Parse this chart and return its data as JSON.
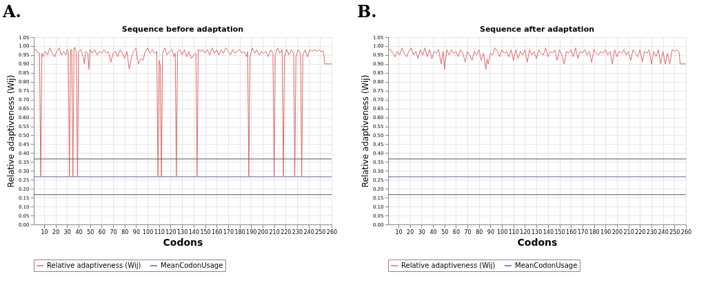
{
  "chart_data": [
    {
      "type": "line",
      "title": "Sequence before adaptation",
      "annotations": [
        "A."
      ],
      "xlabel": "Codons",
      "ylabel": "Relative adaptiveness (Wij)",
      "xlim": [
        1,
        260
      ],
      "xticks": [
        10,
        20,
        30,
        40,
        50,
        60,
        70,
        80,
        90,
        100,
        110,
        120,
        130,
        140,
        150,
        160,
        170,
        180,
        190,
        200,
        210,
        220,
        230,
        240,
        250,
        260
      ],
      "ylim": [
        0,
        1.05
      ],
      "yticks": [
        {
          "value": 0,
          "label": "0.00"
        },
        {
          "value": 0.05,
          "label": "0.05"
        },
        {
          "value": 0.1,
          "label": "0.10"
        },
        {
          "value": 0.15,
          "label": "0.15"
        },
        {
          "value": 0.2,
          "label": "0.20"
        },
        {
          "value": 0.25,
          "label": "0.25"
        },
        {
          "value": 0.3,
          "label": "0.30"
        },
        {
          "value": 0.35,
          "label": "0.35"
        },
        {
          "value": 0.4,
          "label": "0.40"
        },
        {
          "value": 0.45,
          "label": "0.45"
        },
        {
          "value": 0.5,
          "label": "0.50"
        },
        {
          "value": 0.55,
          "label": "0.55"
        },
        {
          "value": 0.6,
          "label": "0.60"
        },
        {
          "value": 0.65,
          "label": "0.65"
        },
        {
          "value": 0.7,
          "label": "0.70"
        },
        {
          "value": 0.75,
          "label": "0.75"
        },
        {
          "value": 0.8,
          "label": "0.80"
        },
        {
          "value": 0.85,
          "label": "0.85"
        },
        {
          "value": 0.9,
          "label": "0.90"
        },
        {
          "value": 0.95,
          "label": "0.95"
        },
        {
          "value": 1,
          "label": "1.00"
        },
        {
          "value": 1.05,
          "label": "1.05"
        }
      ],
      "grid": true,
      "legend": "bottom",
      "line_style": "solid",
      "series": [
        {
          "name": "Relative adaptiveness (Wij)",
          "color": "#e06666",
          "x": [
            1,
            3,
            5,
            6,
            7,
            8,
            9,
            11,
            13,
            15,
            17,
            19,
            21,
            23,
            25,
            27,
            29,
            30,
            31,
            32,
            33,
            34,
            35,
            36,
            37,
            38,
            39,
            40,
            42,
            44,
            45,
            46,
            48,
            49,
            50,
            52,
            54,
            56,
            58,
            60,
            62,
            64,
            66,
            68,
            70,
            72,
            74,
            76,
            78,
            80,
            82,
            84,
            86,
            88,
            90,
            91,
            92,
            94,
            96,
            98,
            100,
            102,
            104,
            106,
            107,
            108,
            109,
            110,
            111,
            112,
            113,
            115,
            117,
            119,
            121,
            123,
            124,
            125,
            126,
            128,
            130,
            132,
            134,
            136,
            138,
            140,
            142,
            143,
            144,
            146,
            148,
            150,
            152,
            154,
            156,
            158,
            160,
            162,
            164,
            166,
            168,
            170,
            172,
            174,
            176,
            178,
            180,
            182,
            184,
            186,
            187,
            188,
            189,
            191,
            193,
            195,
            197,
            199,
            201,
            203,
            205,
            207,
            209,
            210,
            211,
            213,
            215,
            217,
            218,
            219,
            221,
            223,
            225,
            227,
            228,
            229,
            231,
            233,
            234,
            235,
            237,
            239,
            241,
            243,
            245,
            247,
            249,
            251,
            253,
            254,
            260
          ],
          "values": [
            0.98,
            0.98,
            0.96,
            0.96,
            0.27,
            0.96,
            0.94,
            0.97,
            0.95,
            0.99,
            0.96,
            0.94,
            0.97,
            0.99,
            0.95,
            0.97,
            0.95,
            0.98,
            0.97,
            0.27,
            0.98,
            0.98,
            0.27,
            0.99,
            0.99,
            0.96,
            0.27,
            0.97,
            0.98,
            0.94,
            0.9,
            0.97,
            0.96,
            0.87,
            0.98,
            0.96,
            0.98,
            0.95,
            0.97,
            0.96,
            0.98,
            0.96,
            0.97,
            0.91,
            0.96,
            0.97,
            0.94,
            0.98,
            0.96,
            0.93,
            0.97,
            0.87,
            0.94,
            0.97,
            0.99,
            0.93,
            0.9,
            0.93,
            0.92,
            0.97,
            0.99,
            0.96,
            0.98,
            0.96,
            0.96,
            0.97,
            0.27,
            0.92,
            0.89,
            0.27,
            0.96,
            0.99,
            0.95,
            0.97,
            0.98,
            0.94,
            0.96,
            0.27,
            0.97,
            0.98,
            0.95,
            0.98,
            0.94,
            0.97,
            0.93,
            0.95,
            0.96,
            0.27,
            0.98,
            0.97,
            0.98,
            0.96,
            0.98,
            0.95,
            0.99,
            0.96,
            0.98,
            0.95,
            0.98,
            0.96,
            0.99,
            0.97,
            0.95,
            0.98,
            0.96,
            0.97,
            0.98,
            0.96,
            0.97,
            0.94,
            0.97,
            0.27,
            0.94,
            0.99,
            0.96,
            0.98,
            0.95,
            0.97,
            0.96,
            0.97,
            0.94,
            0.98,
            0.96,
            0.27,
            0.95,
            0.99,
            0.96,
            0.98,
            0.27,
            0.94,
            0.98,
            0.95,
            0.98,
            0.96,
            0.27,
            0.94,
            0.98,
            0.96,
            0.27,
            0.95,
            0.98,
            0.94,
            0.98,
            0.97,
            0.98,
            0.97,
            0.98,
            0.97,
            0.97,
            0.9,
            0.9
          ]
        },
        {
          "name": "MeanCodonUsage",
          "color": "#5a5fb0",
          "x": [
            1,
            260
          ],
          "values": [
            0.267,
            0.267
          ]
        }
      ],
      "ref_lines": [
        {
          "axis": "y",
          "value": 0.367,
          "color": "#555555"
        },
        {
          "axis": "y",
          "value": 0.167,
          "color": "#555555"
        }
      ]
    },
    {
      "type": "line",
      "title": "Sequence after adaptation",
      "annotations": [
        "B."
      ],
      "xlabel": "Codons",
      "ylabel": "Relative adaptiveness (Wij)",
      "xlim": [
        1,
        260
      ],
      "xticks": [
        10,
        20,
        30,
        40,
        50,
        60,
        70,
        80,
        90,
        100,
        110,
        120,
        130,
        140,
        150,
        160,
        170,
        180,
        190,
        200,
        210,
        220,
        230,
        240,
        250,
        260
      ],
      "ylim": [
        0,
        1.05
      ],
      "yticks": [
        {
          "value": 0,
          "label": "0.00"
        },
        {
          "value": 0.05,
          "label": "0.05"
        },
        {
          "value": 0.1,
          "label": "0.10"
        },
        {
          "value": 0.15,
          "label": "0.15"
        },
        {
          "value": 0.2,
          "label": "0.20"
        },
        {
          "value": 0.25,
          "label": "0.25"
        },
        {
          "value": 0.3,
          "label": "0.30"
        },
        {
          "value": 0.35,
          "label": "0.35"
        },
        {
          "value": 0.4,
          "label": "0.40"
        },
        {
          "value": 0.45,
          "label": "0.45"
        },
        {
          "value": 0.5,
          "label": "0.50"
        },
        {
          "value": 0.55,
          "label": "0.55"
        },
        {
          "value": 0.6,
          "label": "0.60"
        },
        {
          "value": 0.65,
          "label": "0.65"
        },
        {
          "value": 0.7,
          "label": "0.70"
        },
        {
          "value": 0.75,
          "label": "0.75"
        },
        {
          "value": 0.8,
          "label": "0.80"
        },
        {
          "value": 0.85,
          "label": "0.85"
        },
        {
          "value": 0.9,
          "label": "0.90"
        },
        {
          "value": 0.95,
          "label": "0.95"
        },
        {
          "value": 1,
          "label": "1.00"
        },
        {
          "value": 1.05,
          "label": "1.05"
        }
      ],
      "grid": true,
      "legend": "bottom",
      "line_style": "solid",
      "series": [
        {
          "name": "Relative adaptiveness (Wij)",
          "color": "#e06666",
          "x": [
            1,
            3,
            5,
            7,
            9,
            11,
            13,
            15,
            17,
            19,
            21,
            23,
            25,
            27,
            29,
            31,
            33,
            35,
            37,
            39,
            41,
            43,
            45,
            47,
            49,
            50,
            52,
            54,
            56,
            58,
            60,
            62,
            64,
            66,
            68,
            70,
            72,
            74,
            76,
            78,
            80,
            82,
            84,
            86,
            87,
            88,
            90,
            92,
            94,
            96,
            98,
            100,
            102,
            104,
            106,
            108,
            110,
            112,
            114,
            116,
            118,
            120,
            122,
            124,
            126,
            128,
            130,
            132,
            134,
            136,
            138,
            140,
            142,
            144,
            146,
            148,
            150,
            152,
            154,
            156,
            158,
            160,
            162,
            164,
            166,
            168,
            170,
            172,
            174,
            176,
            178,
            180,
            182,
            184,
            186,
            188,
            190,
            192,
            194,
            196,
            198,
            200,
            202,
            204,
            206,
            208,
            210,
            212,
            214,
            216,
            218,
            220,
            222,
            224,
            226,
            228,
            230,
            232,
            234,
            236,
            238,
            240,
            242,
            244,
            246,
            248,
            250,
            252,
            254,
            255,
            260
          ],
          "values": [
            0.98,
            0.98,
            0.96,
            0.94,
            0.97,
            0.95,
            0.99,
            0.96,
            0.94,
            0.97,
            0.99,
            0.95,
            0.97,
            0.93,
            0.98,
            0.95,
            0.99,
            0.94,
            0.98,
            0.93,
            0.97,
            0.96,
            0.98,
            0.9,
            0.97,
            0.87,
            0.98,
            0.95,
            0.98,
            0.96,
            0.97,
            0.94,
            0.98,
            0.96,
            0.91,
            0.97,
            0.95,
            0.92,
            0.97,
            0.95,
            0.98,
            0.92,
            0.96,
            0.87,
            0.93,
            0.9,
            0.96,
            0.95,
            0.99,
            0.97,
            0.94,
            0.98,
            0.96,
            0.97,
            0.94,
            0.98,
            0.92,
            0.98,
            0.93,
            0.97,
            0.95,
            0.98,
            0.91,
            0.98,
            0.95,
            0.97,
            0.93,
            0.98,
            0.96,
            0.95,
            0.99,
            0.94,
            0.97,
            0.96,
            0.98,
            0.92,
            0.98,
            0.95,
            0.9,
            0.97,
            0.96,
            0.98,
            0.94,
            0.99,
            0.93,
            0.97,
            0.96,
            0.98,
            0.95,
            0.97,
            0.91,
            0.98,
            0.96,
            0.95,
            0.97,
            0.96,
            0.98,
            0.95,
            0.97,
            0.9,
            0.98,
            0.94,
            0.97,
            0.96,
            0.98,
            0.95,
            0.97,
            0.92,
            0.98,
            0.96,
            0.94,
            0.98,
            0.91,
            0.97,
            0.96,
            0.98,
            0.9,
            0.97,
            0.94,
            0.98,
            0.9,
            0.97,
            0.9,
            0.96,
            0.9,
            0.98,
            0.97,
            0.98,
            0.97,
            0.9,
            0.9
          ]
        },
        {
          "name": "MeanCodonUsage",
          "color": "#5a5fb0",
          "x": [
            1,
            260
          ],
          "values": [
            0.267,
            0.267
          ]
        }
      ],
      "ref_lines": [
        {
          "axis": "y",
          "value": 0.367,
          "color": "#555555"
        },
        {
          "axis": "y",
          "value": 0.167,
          "color": "#555555"
        }
      ]
    }
  ]
}
